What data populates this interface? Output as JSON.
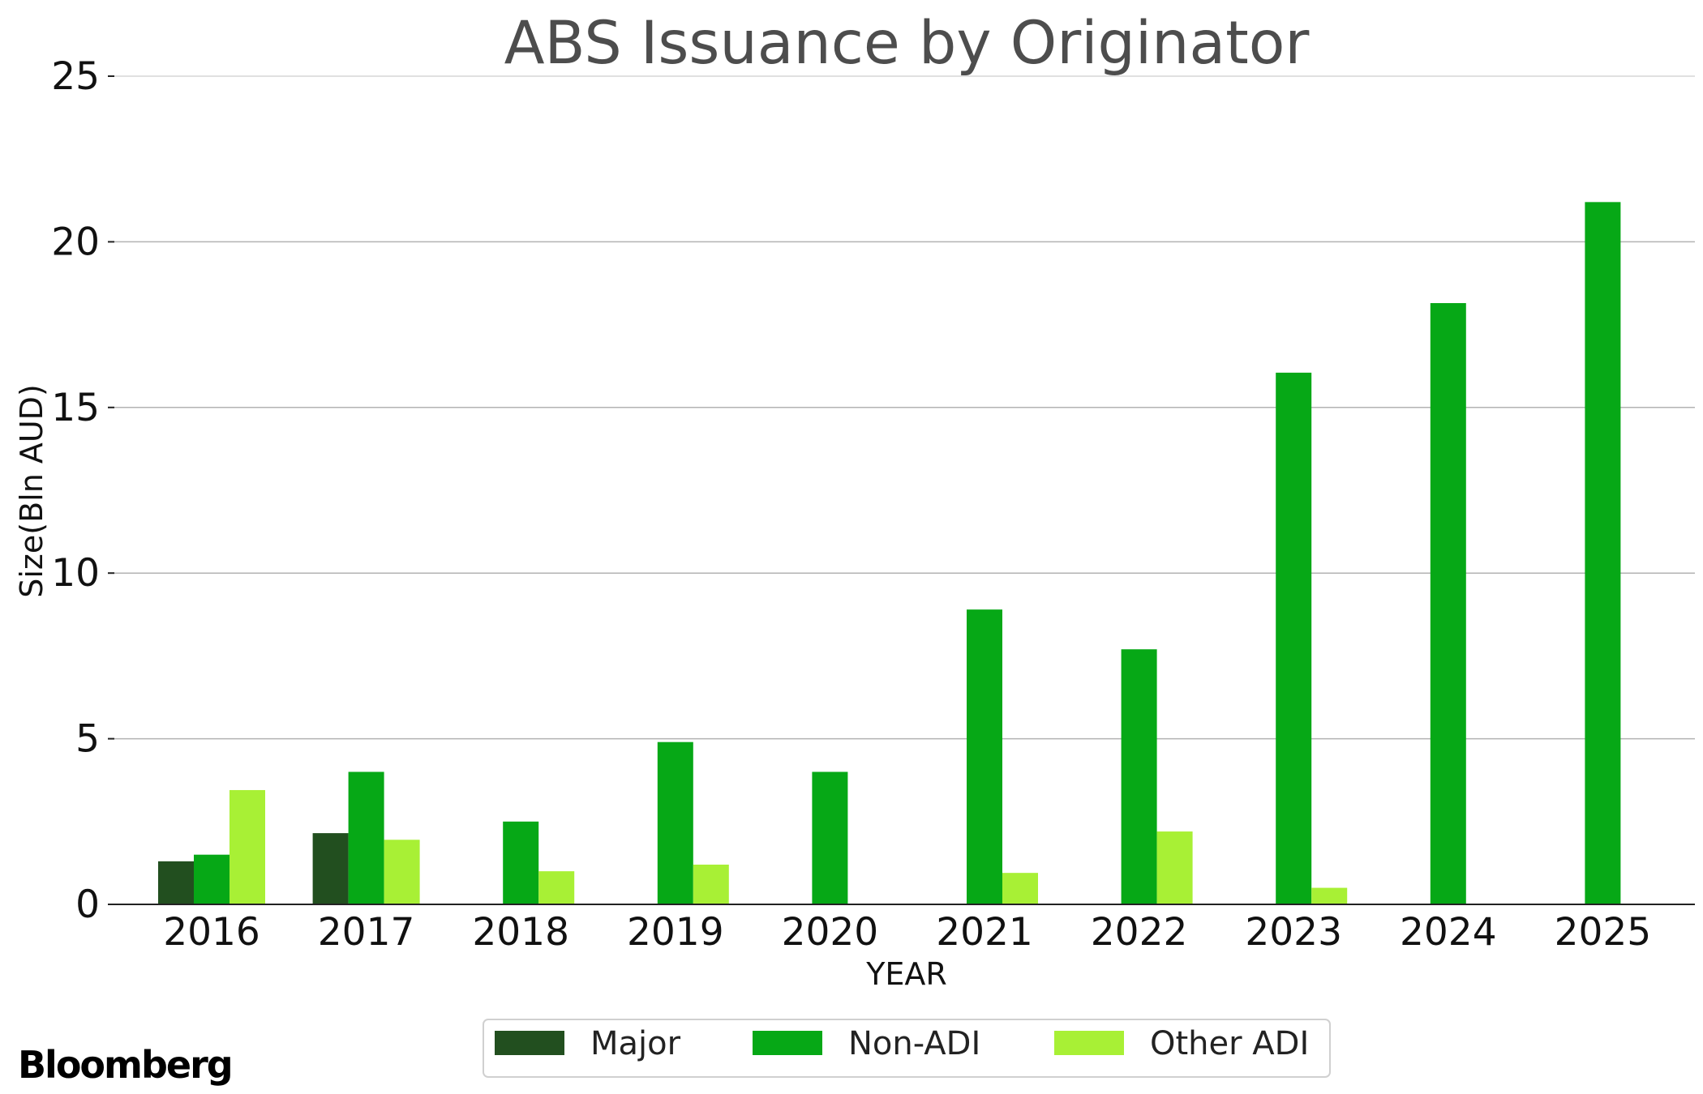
{
  "chart_data": {
    "type": "bar",
    "title": "ABS Issuance by Originator",
    "xlabel": "YEAR",
    "ylabel": "Size(Bln AUD)",
    "ylim": [
      0,
      25
    ],
    "yticks": [
      "0",
      "5",
      "10",
      "15",
      "20",
      "25"
    ],
    "grid": "horizontal",
    "legend_position": "bottom-center",
    "categories": [
      "2016",
      "2017",
      "2018",
      "2019",
      "2020",
      "2021",
      "2022",
      "2023",
      "2024",
      "2025"
    ],
    "series": [
      {
        "name": "Major",
        "color": "#224f1f",
        "values": [
          1.3,
          2.15,
          0,
          0,
          0,
          0,
          0,
          0,
          0,
          0
        ]
      },
      {
        "name": "Non-ADI",
        "color": "#06a816",
        "values": [
          1.5,
          4.0,
          2.5,
          4.9,
          4.0,
          8.9,
          7.7,
          16.05,
          18.15,
          21.2
        ]
      },
      {
        "name": "Other ADI",
        "color": "#a8f035",
        "values": [
          3.45,
          1.95,
          1.0,
          1.2,
          0,
          0.95,
          2.2,
          0.5,
          0,
          0
        ]
      }
    ]
  },
  "branding": {
    "logo_text": "Bloomberg"
  }
}
